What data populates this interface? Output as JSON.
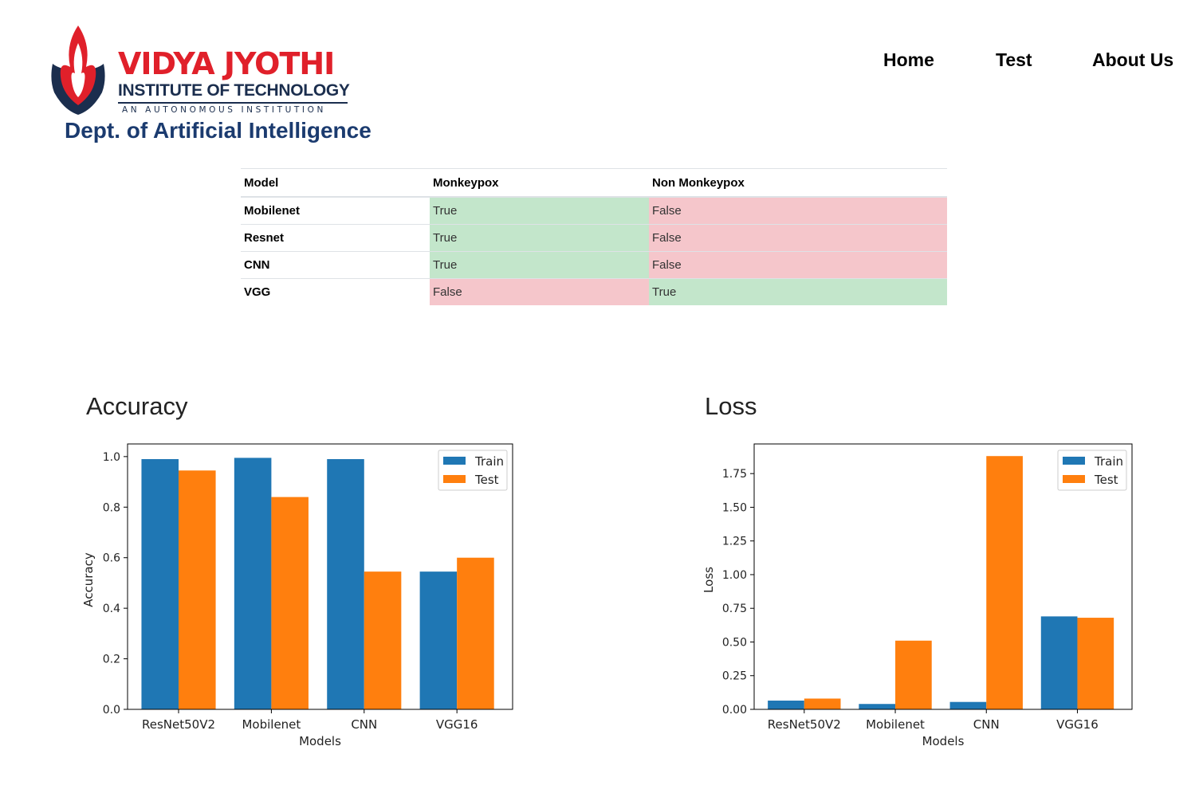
{
  "header": {
    "logo": {
      "name": "VIDYA JYOTHI",
      "subtitle": "INSTITUTE OF TECHNOLOGY",
      "tagline": "AN AUTONOMOUS INSTITUTION"
    },
    "dept": "Dept. of Artificial Intelligence",
    "nav": [
      {
        "label": "Home"
      },
      {
        "label": "Test"
      },
      {
        "label": "About Us"
      }
    ]
  },
  "results_table": {
    "headers": [
      "Model",
      "Monkeypox",
      "Non Monkeypox"
    ],
    "rows": [
      {
        "model": "Mobilenet",
        "monkeypox": "True",
        "non_monkeypox": "False"
      },
      {
        "model": "Resnet",
        "monkeypox": "True",
        "non_monkeypox": "False"
      },
      {
        "model": "CNN",
        "monkeypox": "True",
        "non_monkeypox": "False"
      },
      {
        "model": "VGG",
        "monkeypox": "False",
        "non_monkeypox": "True"
      }
    ],
    "colors": {
      "true_bg": "#c3e6cb",
      "false_bg": "#f5c6cb"
    }
  },
  "charts": {
    "accuracy_title": "Accuracy",
    "loss_title": "Loss"
  },
  "chart_data": [
    {
      "type": "bar",
      "title": "Accuracy",
      "xlabel": "Models",
      "ylabel": "Accuracy",
      "categories": [
        "ResNet50V2",
        "Mobilenet",
        "CNN",
        "VGG16"
      ],
      "series": [
        {
          "name": "Train",
          "values": [
            0.99,
            0.995,
            0.99,
            0.545
          ],
          "color": "#1f77b4"
        },
        {
          "name": "Test",
          "values": [
            0.945,
            0.84,
            0.545,
            0.6
          ],
          "color": "#ff7f0e"
        }
      ],
      "ylim": [
        0,
        1.05
      ],
      "yticks": [
        "0.0",
        "0.2",
        "0.4",
        "0.6",
        "0.8",
        "1.0"
      ],
      "legend": "top-right",
      "grid": false
    },
    {
      "type": "bar",
      "title": "Loss",
      "xlabel": "Models",
      "ylabel": "Loss",
      "categories": [
        "ResNet50V2",
        "Mobilenet",
        "CNN",
        "VGG16"
      ],
      "series": [
        {
          "name": "Train",
          "values": [
            0.065,
            0.04,
            0.055,
            0.69
          ],
          "color": "#1f77b4"
        },
        {
          "name": "Test",
          "values": [
            0.08,
            0.51,
            1.88,
            0.68
          ],
          "color": "#ff7f0e"
        }
      ],
      "ylim": [
        0,
        1.97
      ],
      "yticks": [
        "0.00",
        "0.25",
        "0.50",
        "0.75",
        "1.00",
        "1.25",
        "1.50",
        "1.75"
      ],
      "legend": "top-right",
      "grid": false
    }
  ]
}
